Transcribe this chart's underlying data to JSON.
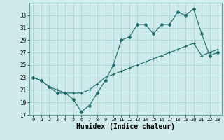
{
  "title": "",
  "xlabel": "Humidex (Indice chaleur)",
  "bg_color": "#ceeaea",
  "grid_color": "#a8d4d4",
  "line_color": "#1a6b6b",
  "x_line1": [
    0,
    1,
    2,
    3,
    4,
    5,
    6,
    7,
    8,
    9,
    10,
    11,
    12,
    13,
    14,
    15,
    16,
    17,
    18,
    19,
    20,
    21,
    22,
    23
  ],
  "y_line1": [
    23,
    22.5,
    21.5,
    20.5,
    20.5,
    19.5,
    17.5,
    18.5,
    20.5,
    22.5,
    25,
    29,
    29.5,
    31.5,
    31.5,
    30,
    31.5,
    31.5,
    33.5,
    33,
    34,
    30,
    26.5,
    27
  ],
  "x_line2": [
    0,
    1,
    2,
    3,
    4,
    5,
    6,
    7,
    8,
    9,
    10,
    11,
    12,
    13,
    14,
    15,
    16,
    17,
    18,
    19,
    20,
    21,
    22,
    23
  ],
  "y_line2": [
    23,
    22.5,
    21.5,
    21,
    20.5,
    20.5,
    20.5,
    21,
    22,
    23,
    23.5,
    24,
    24.5,
    25,
    25.5,
    26,
    26.5,
    27,
    27.5,
    28,
    28.5,
    26.5,
    27,
    27.5
  ],
  "ylim": [
    17,
    35
  ],
  "yticks": [
    17,
    19,
    21,
    23,
    25,
    27,
    29,
    31,
    33
  ],
  "xticks": [
    0,
    1,
    2,
    3,
    4,
    5,
    6,
    7,
    8,
    9,
    10,
    11,
    12,
    13,
    14,
    15,
    16,
    17,
    18,
    19,
    20,
    21,
    22,
    23
  ],
  "marker1": "D",
  "markersize1": 2.5,
  "marker2": "+",
  "markersize2": 3.5,
  "linewidth": 0.8
}
